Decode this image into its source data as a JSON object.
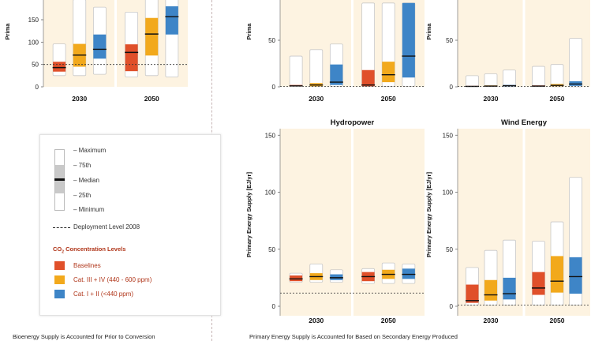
{
  "colors": {
    "panel_bg": "#fdf3e1",
    "baselines": "#e0502a",
    "cat_iii_iv": "#f2a91c",
    "cat_i_ii": "#3e85c7",
    "box_fill": "#ffffff",
    "box_stroke": "#c8c8c8",
    "median": "#111111"
  },
  "legend": {
    "maximum": "Maximum",
    "p75": "75th",
    "median": "Median",
    "p25": "25th",
    "minimum": "Minimum",
    "deployment": "Deployment Level 2008",
    "concentration_title": "CO",
    "concentration_sub": "2",
    "concentration_rest": " Concentration Levels",
    "baselines": "Baselines",
    "cat_iii_iv": "Cat. III + IV (440 - 600 ppm)",
    "cat_i_ii": "Cat. I + II (<440 ppm)"
  },
  "captions": {
    "left": "Bioenergy Supply is Accounted for Prior to Conversion",
    "right": "Primary Energy Supply is Accounted for Based on Secondary Energy Produced"
  },
  "chart_data": [
    {
      "id": "bioenergy",
      "type": "box",
      "title": "",
      "ylabel": "Prima",
      "ylim": [
        0,
        150
      ],
      "yticks": [
        0,
        50,
        100,
        150
      ],
      "deployment_level": 50,
      "categories": [
        "2030",
        "2050"
      ],
      "groups": [
        [
          {
            "series": "baselines",
            "min": 25,
            "q25": 34,
            "median": 43,
            "q75": 56,
            "max": 96
          },
          {
            "series": "cat_iii_iv",
            "min": 25,
            "q25": 45,
            "median": 71,
            "q75": 96,
            "max": 195
          },
          {
            "series": "cat_i_ii",
            "min": 28,
            "q25": 63,
            "median": 84,
            "q75": 117,
            "max": 178
          }
        ],
        [
          {
            "series": "baselines",
            "min": 22,
            "q25": 35,
            "median": 77,
            "q75": 95,
            "max": 167
          },
          {
            "series": "cat_iii_iv",
            "min": 25,
            "q25": 70,
            "median": 118,
            "q75": 154,
            "max": 205
          },
          {
            "series": "cat_i_ii",
            "min": 22,
            "q25": 117,
            "median": 157,
            "q75": 180,
            "max": 200
          }
        ]
      ]
    },
    {
      "id": "top-middle",
      "type": "box",
      "title": "",
      "ylabel": "Prima",
      "ylim": [
        0,
        80
      ],
      "yticks": [
        0,
        50
      ],
      "deployment_level": 0.5,
      "categories": [
        "2030",
        "2050"
      ],
      "groups": [
        [
          {
            "series": "baselines",
            "min": 0.5,
            "q25": 0.5,
            "median": 1,
            "q75": 2,
            "max": 33
          },
          {
            "series": "cat_iii_iv",
            "min": 0.5,
            "q25": 0.5,
            "median": 2,
            "q75": 4,
            "max": 40
          },
          {
            "series": "cat_i_ii",
            "min": 0.5,
            "q25": 2,
            "median": 5,
            "q75": 24,
            "max": 46
          }
        ],
        [
          {
            "series": "baselines",
            "min": 0.5,
            "q25": 0.5,
            "median": 2,
            "q75": 18,
            "max": 90
          },
          {
            "series": "cat_iii_iv",
            "min": 0.5,
            "q25": 5,
            "median": 13,
            "q75": 27,
            "max": 90
          },
          {
            "series": "cat_i_ii",
            "min": 0.5,
            "q25": 10,
            "median": 33,
            "q75": 90,
            "max": 90
          }
        ]
      ]
    },
    {
      "id": "top-right",
      "type": "box",
      "title": "",
      "ylabel": "Prima",
      "ylim": [
        0,
        80
      ],
      "yticks": [
        0,
        50
      ],
      "deployment_level": 0.3,
      "categories": [
        "2030",
        "2050"
      ],
      "groups": [
        [
          {
            "series": "baselines",
            "min": 0,
            "q25": 0.2,
            "median": 0.5,
            "q75": 1,
            "max": 12
          },
          {
            "series": "cat_iii_iv",
            "min": 0,
            "q25": 0.3,
            "median": 0.8,
            "q75": 1.5,
            "max": 14
          },
          {
            "series": "cat_i_ii",
            "min": 0,
            "q25": 0.5,
            "median": 1.2,
            "q75": 2,
            "max": 18
          }
        ],
        [
          {
            "series": "baselines",
            "min": 0,
            "q25": 0.3,
            "median": 0.8,
            "q75": 1.5,
            "max": 22
          },
          {
            "series": "cat_iii_iv",
            "min": 0,
            "q25": 0.6,
            "median": 1.5,
            "q75": 3,
            "max": 24
          },
          {
            "series": "cat_i_ii",
            "min": 0,
            "q25": 1,
            "median": 3,
            "q75": 6,
            "max": 52
          }
        ]
      ]
    },
    {
      "id": "hydropower",
      "type": "box",
      "title": "Hydropower",
      "ylabel": "Primary Energy Supply [EJ/yr]",
      "ylim": [
        0,
        150
      ],
      "yticks": [
        0,
        50,
        100,
        150
      ],
      "deployment_level": 11.6,
      "categories": [
        "2030",
        "2050"
      ],
      "groups": [
        [
          {
            "series": "baselines",
            "min": 21,
            "q25": 22,
            "median": 24,
            "q75": 27,
            "max": 29
          },
          {
            "series": "cat_iii_iv",
            "min": 21,
            "q25": 23,
            "median": 26,
            "q75": 29,
            "max": 37
          },
          {
            "series": "cat_i_ii",
            "min": 21,
            "q25": 23,
            "median": 25,
            "q75": 28,
            "max": 32
          }
        ],
        [
          {
            "series": "baselines",
            "min": 20,
            "q25": 22,
            "median": 26,
            "q75": 30,
            "max": 33
          },
          {
            "series": "cat_iii_iv",
            "min": 20,
            "q25": 24,
            "median": 28,
            "q75": 32,
            "max": 38
          },
          {
            "series": "cat_i_ii",
            "min": 20,
            "q25": 24,
            "median": 28,
            "q75": 33,
            "max": 37
          }
        ]
      ]
    },
    {
      "id": "wind",
      "type": "box",
      "title": "Wind Energy",
      "ylabel": "Primary Energy Supply [EJ/yr]",
      "ylim": [
        0,
        150
      ],
      "yticks": [
        0,
        50,
        100,
        150
      ],
      "deployment_level": 1.1,
      "categories": [
        "2030",
        "2050"
      ],
      "groups": [
        [
          {
            "series": "baselines",
            "min": 1,
            "q25": 3,
            "median": 5,
            "q75": 19,
            "max": 34
          },
          {
            "series": "cat_iii_iv",
            "min": 1,
            "q25": 5,
            "median": 10,
            "q75": 23,
            "max": 49
          },
          {
            "series": "cat_i_ii",
            "min": 1,
            "q25": 6,
            "median": 11,
            "q75": 25,
            "max": 58
          }
        ],
        [
          {
            "series": "baselines",
            "min": 1,
            "q25": 10,
            "median": 16,
            "q75": 30,
            "max": 57
          },
          {
            "series": "cat_iii_iv",
            "min": 1,
            "q25": 12,
            "median": 22,
            "q75": 44,
            "max": 74
          },
          {
            "series": "cat_i_ii",
            "min": 1,
            "q25": 11,
            "median": 26,
            "q75": 43,
            "max": 113
          }
        ]
      ]
    }
  ]
}
